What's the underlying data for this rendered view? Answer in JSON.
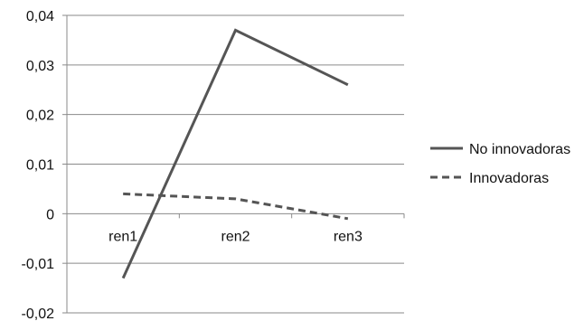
{
  "chart_data": {
    "type": "line",
    "categories": [
      "ren1",
      "ren2",
      "ren3"
    ],
    "y_ticks": [
      "0,04",
      "0,03",
      "0,02",
      "0,01",
      "0",
      "-0,01",
      "-0,02"
    ],
    "y_tick_values": [
      0.04,
      0.03,
      0.02,
      0.01,
      0,
      -0.01,
      -0.02
    ],
    "ylim": [
      -0.02,
      0.04
    ],
    "grid": true,
    "legend_position": "right",
    "series": [
      {
        "name": "No innovadoras",
        "values": [
          -0.013,
          0.037,
          0.026
        ],
        "color": "#555555",
        "dash": "solid"
      },
      {
        "name": "Innovadoras",
        "values": [
          0.004,
          0.003,
          -0.001
        ],
        "color": "#555555",
        "dash": "dashed"
      }
    ]
  }
}
